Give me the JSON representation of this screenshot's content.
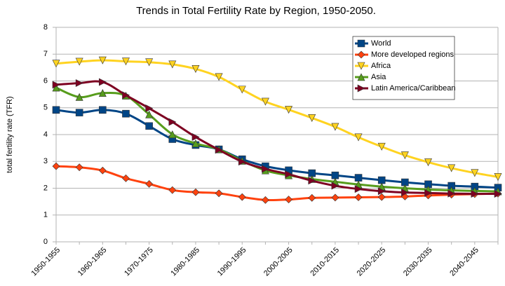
{
  "chart_data": {
    "type": "line",
    "title": "Trends in Total Fertility Rate by Region, 1950-2050.",
    "y_label": "total fertility rate (TFR)",
    "categories": [
      "1950-1955",
      null,
      "1960-1965",
      null,
      "1970-1975",
      null,
      "1980-1985",
      null,
      "1990-1995",
      null,
      "2000-2005",
      null,
      "2010-2015",
      null,
      "2020-2025",
      null,
      "2030-2035",
      null,
      "2040-2045",
      null
    ],
    "series": [
      {
        "name": "World",
        "color": "#004586",
        "marker": "square",
        "values": [
          4.92,
          4.82,
          4.92,
          4.78,
          4.32,
          3.83,
          3.61,
          3.45,
          3.08,
          2.82,
          2.67,
          2.56,
          2.48,
          2.39,
          2.3,
          2.22,
          2.15,
          2.09,
          2.06,
          2.02
        ]
      },
      {
        "name": "More developed regions",
        "color": "#ff420e",
        "marker": "diamond",
        "values": [
          2.82,
          2.78,
          2.66,
          2.37,
          2.16,
          1.93,
          1.85,
          1.81,
          1.67,
          1.56,
          1.58,
          1.64,
          1.65,
          1.66,
          1.67,
          1.69,
          1.73,
          1.76,
          1.78,
          1.8
        ]
      },
      {
        "name": "Africa",
        "color": "#ffd320",
        "marker": "triangle-down",
        "values": [
          6.65,
          6.72,
          6.77,
          6.73,
          6.7,
          6.62,
          6.45,
          6.15,
          5.68,
          5.23,
          4.93,
          4.62,
          4.29,
          3.9,
          3.55,
          3.23,
          2.97,
          2.75,
          2.57,
          2.42
        ]
      },
      {
        "name": "Asia",
        "color": "#579d1c",
        "marker": "triangle-up",
        "values": [
          5.75,
          5.4,
          5.55,
          5.45,
          4.75,
          4.01,
          3.67,
          3.45,
          3.02,
          2.66,
          2.48,
          2.34,
          2.24,
          2.14,
          2.06,
          2.0,
          1.95,
          1.92,
          1.9,
          1.88
        ]
      },
      {
        "name": "Latin America/Caribbean",
        "color": "#7e0021",
        "marker": "triangle-right",
        "values": [
          5.86,
          5.92,
          5.96,
          5.47,
          4.98,
          4.47,
          3.91,
          3.43,
          2.99,
          2.72,
          2.52,
          2.28,
          2.09,
          1.97,
          1.89,
          1.84,
          1.82,
          1.8,
          1.79,
          1.79
        ]
      }
    ],
    "ylim": [
      0,
      8
    ],
    "yticks": [
      0,
      1,
      2,
      3,
      4,
      5,
      6,
      7,
      8
    ],
    "grid": true,
    "smooth": true,
    "legend": "upper right"
  }
}
